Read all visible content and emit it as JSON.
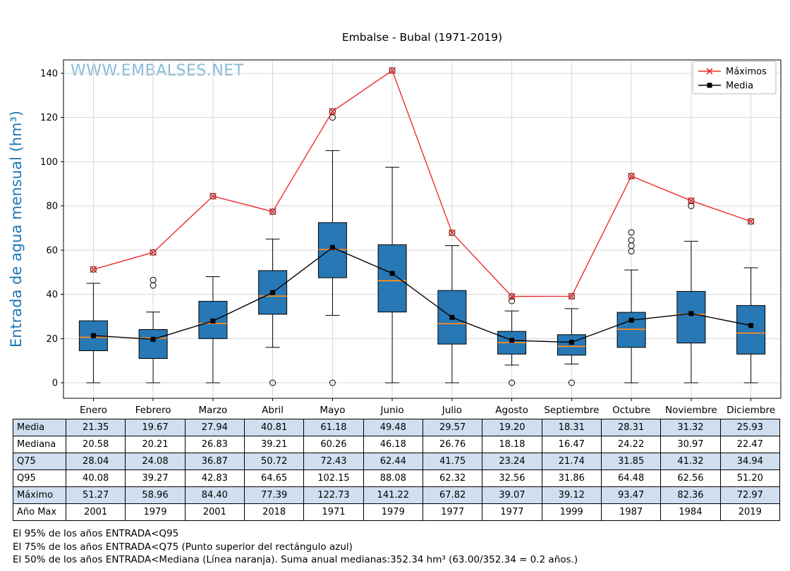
{
  "watermark": {
    "text": "WWW.EMBALSES.NET",
    "color": "#7ab3d6"
  },
  "chart_data": {
    "type": "boxplot",
    "title": "Embalse - Bubal (1971-2019)",
    "ylabel": "Entrada de agua mensual (hm³)",
    "ylabel_color": "#1f77b4",
    "xlabel": "",
    "ylim": [
      -7,
      146
    ],
    "yticks": [
      0,
      20,
      40,
      60,
      80,
      100,
      120,
      140
    ],
    "grid": true,
    "box_color": "#2778b5",
    "median_color": "#ff8c1a",
    "grid_color": "#d8d8d8",
    "categories": [
      "Enero",
      "Febrero",
      "Marzo",
      "Abril",
      "Mayo",
      "Junio",
      "Julio",
      "Agosto",
      "Septiembre",
      "Octubre",
      "Noviembre",
      "Diciembre"
    ],
    "series": [
      {
        "name": "Máximos",
        "color": "#ed2d2d",
        "marker": "x",
        "values": [
          51.27,
          58.96,
          84.4,
          77.39,
          122.73,
          141.22,
          67.82,
          39.07,
          39.12,
          93.47,
          82.36,
          72.97
        ]
      },
      {
        "name": "Media",
        "color": "#000000",
        "marker": "square",
        "values": [
          21.35,
          19.67,
          27.94,
          40.81,
          61.18,
          49.48,
          29.57,
          19.2,
          18.31,
          28.31,
          31.32,
          25.93
        ]
      }
    ],
    "boxes": [
      {
        "label": "Enero",
        "q25": 14.5,
        "median": 20.58,
        "q75": 28.04,
        "whisker_low": 0,
        "whisker_high": 45,
        "outliers": [
          51.27
        ]
      },
      {
        "label": "Febrero",
        "q25": 11,
        "median": 20.21,
        "q75": 24.08,
        "whisker_low": 0,
        "whisker_high": 32,
        "outliers": [
          44,
          46.5,
          58.96
        ]
      },
      {
        "label": "Marzo",
        "q25": 20,
        "median": 26.83,
        "q75": 36.87,
        "whisker_low": 0,
        "whisker_high": 48,
        "outliers": [
          84.4
        ]
      },
      {
        "label": "Abril",
        "q25": 31,
        "median": 39.21,
        "q75": 50.72,
        "whisker_low": 16,
        "whisker_high": 65,
        "outliers": [
          0,
          77.39
        ]
      },
      {
        "label": "Mayo",
        "q25": 47.5,
        "median": 60.26,
        "q75": 72.43,
        "whisker_low": 30.5,
        "whisker_high": 105,
        "outliers": [
          0,
          120,
          122.73
        ]
      },
      {
        "label": "Junio",
        "q25": 32,
        "median": 46.18,
        "q75": 62.44,
        "whisker_low": 0,
        "whisker_high": 97.5,
        "outliers": [
          141.22
        ]
      },
      {
        "label": "Julio",
        "q25": 17.5,
        "median": 26.76,
        "q75": 41.75,
        "whisker_low": 0,
        "whisker_high": 62,
        "outliers": [
          67.82
        ]
      },
      {
        "label": "Agosto",
        "q25": 13,
        "median": 18.18,
        "q75": 23.24,
        "whisker_low": 8,
        "whisker_high": 32.5,
        "outliers": [
          0,
          37,
          39.07
        ]
      },
      {
        "label": "Septiembre",
        "q25": 12.5,
        "median": 16.47,
        "q75": 21.74,
        "whisker_low": 8.5,
        "whisker_high": 33.5,
        "outliers": [
          0,
          39.12
        ]
      },
      {
        "label": "Octubre",
        "q25": 16,
        "median": 24.22,
        "q75": 31.85,
        "whisker_low": 0,
        "whisker_high": 51,
        "outliers": [
          59.5,
          62,
          64.5,
          68,
          93.47
        ]
      },
      {
        "label": "Noviembre",
        "q25": 18,
        "median": 30.97,
        "q75": 41.32,
        "whisker_low": 0,
        "whisker_high": 64,
        "outliers": [
          80,
          82.36
        ]
      },
      {
        "label": "Diciembre",
        "q25": 13,
        "median": 22.47,
        "q75": 34.94,
        "whisker_low": 0,
        "whisker_high": 52,
        "outliers": [
          72.97
        ]
      }
    ],
    "legend": {
      "position": "top-right",
      "entries": [
        {
          "label": "Máximos",
          "color": "#ed2d2d",
          "marker": "x"
        },
        {
          "label": "Media",
          "color": "#000000",
          "marker": "square"
        }
      ]
    }
  },
  "table": {
    "row_labels": [
      "Media",
      "Mediana",
      "Q75",
      "Q95",
      "Máximo",
      "Año Max"
    ],
    "alt_row_color": "#cfdff0",
    "rows": [
      [
        "21.35",
        "19.67",
        "27.94",
        "40.81",
        "61.18",
        "49.48",
        "29.57",
        "19.20",
        "18.31",
        "28.31",
        "31.32",
        "25.93"
      ],
      [
        "20.58",
        "20.21",
        "26.83",
        "39.21",
        "60.26",
        "46.18",
        "26.76",
        "18.18",
        "16.47",
        "24.22",
        "30.97",
        "22.47"
      ],
      [
        "28.04",
        "24.08",
        "36.87",
        "50.72",
        "72.43",
        "62.44",
        "41.75",
        "23.24",
        "21.74",
        "31.85",
        "41.32",
        "34.94"
      ],
      [
        "40.08",
        "39.27",
        "42.83",
        "64.65",
        "102.15",
        "88.08",
        "62.32",
        "32.56",
        "31.86",
        "64.48",
        "62.56",
        "51.20"
      ],
      [
        "51.27",
        "58.96",
        "84.40",
        "77.39",
        "122.73",
        "141.22",
        "67.82",
        "39.07",
        "39.12",
        "93.47",
        "82.36",
        "72.97"
      ],
      [
        "2001",
        "1979",
        "2001",
        "2018",
        "1971",
        "1979",
        "1977",
        "1977",
        "1999",
        "1987",
        "1984",
        "2019"
      ]
    ]
  },
  "footnotes": [
    "El 95% de los años ENTRADA<Q95",
    "El 75% de los años ENTRADA<Q75 (Punto superior del rectángulo azul)",
    "El 50% de los años ENTRADA<Mediana (Línea naranja). Suma anual medianas:352.34 hm³ (63.00/352.34 = 0.2 años.)"
  ]
}
